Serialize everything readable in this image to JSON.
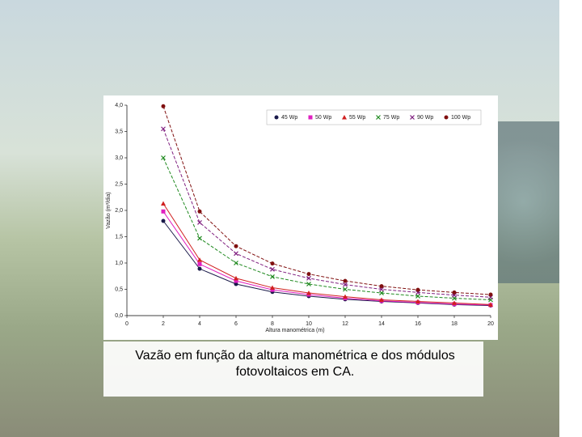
{
  "chart_data": {
    "type": "line",
    "x_label": "Altura manométrica (m)",
    "y_label": "Vazão (m³/dia)",
    "caption": "Vazão em função da altura manométrica e dos módulos fotovoltaicos em CA.",
    "x": [
      2,
      4,
      6,
      8,
      10,
      12,
      14,
      16,
      18,
      20
    ],
    "xlim": [
      0,
      20
    ],
    "xticks": [
      0,
      2,
      4,
      6,
      8,
      10,
      12,
      14,
      16,
      18,
      20
    ],
    "ylim": [
      0,
      4
    ],
    "yticks": [
      {
        "value": 0,
        "label": "0,0"
      },
      {
        "value": 0.5,
        "label": "0,5"
      },
      {
        "value": 1,
        "label": "1,0"
      },
      {
        "value": 1.5,
        "label": "1,5"
      },
      {
        "value": 2,
        "label": "2,0"
      },
      {
        "value": 2.5,
        "label": "2,5"
      },
      {
        "value": 3,
        "label": "3,0"
      },
      {
        "value": 3.5,
        "label": "3,5"
      },
      {
        "value": 4,
        "label": "4,0"
      }
    ],
    "legend": "top-right",
    "series": [
      {
        "name": "45 Wp",
        "color": "#1a1a4a",
        "marker": "circle",
        "dashed": false,
        "values": [
          1.8,
          0.89,
          0.6,
          0.45,
          0.37,
          0.31,
          0.27,
          0.24,
          0.21,
          0.19
        ]
      },
      {
        "name": "50 Wp",
        "color": "#e020c0",
        "marker": "square",
        "dashed": false,
        "values": [
          1.98,
          0.98,
          0.66,
          0.49,
          0.4,
          0.33,
          0.28,
          0.25,
          0.22,
          0.2
        ]
      },
      {
        "name": "55 Wp",
        "color": "#d02020",
        "marker": "triangle",
        "dashed": false,
        "values": [
          2.13,
          1.06,
          0.71,
          0.53,
          0.43,
          0.36,
          0.3,
          0.27,
          0.24,
          0.21
        ]
      },
      {
        "name": "75 Wp",
        "color": "#208a20",
        "marker": "x",
        "dashed": true,
        "values": [
          3.0,
          1.47,
          1.0,
          0.74,
          0.6,
          0.5,
          0.43,
          0.37,
          0.33,
          0.3
        ]
      },
      {
        "name": "90 Wp",
        "color": "#802080",
        "marker": "x",
        "dashed": true,
        "values": [
          3.55,
          1.77,
          1.18,
          0.88,
          0.71,
          0.59,
          0.5,
          0.44,
          0.39,
          0.35
        ]
      },
      {
        "name": "100 Wp",
        "color": "#801010",
        "marker": "circle",
        "dashed": true,
        "values": [
          3.98,
          1.98,
          1.32,
          0.99,
          0.79,
          0.66,
          0.56,
          0.49,
          0.44,
          0.4
        ]
      }
    ]
  }
}
